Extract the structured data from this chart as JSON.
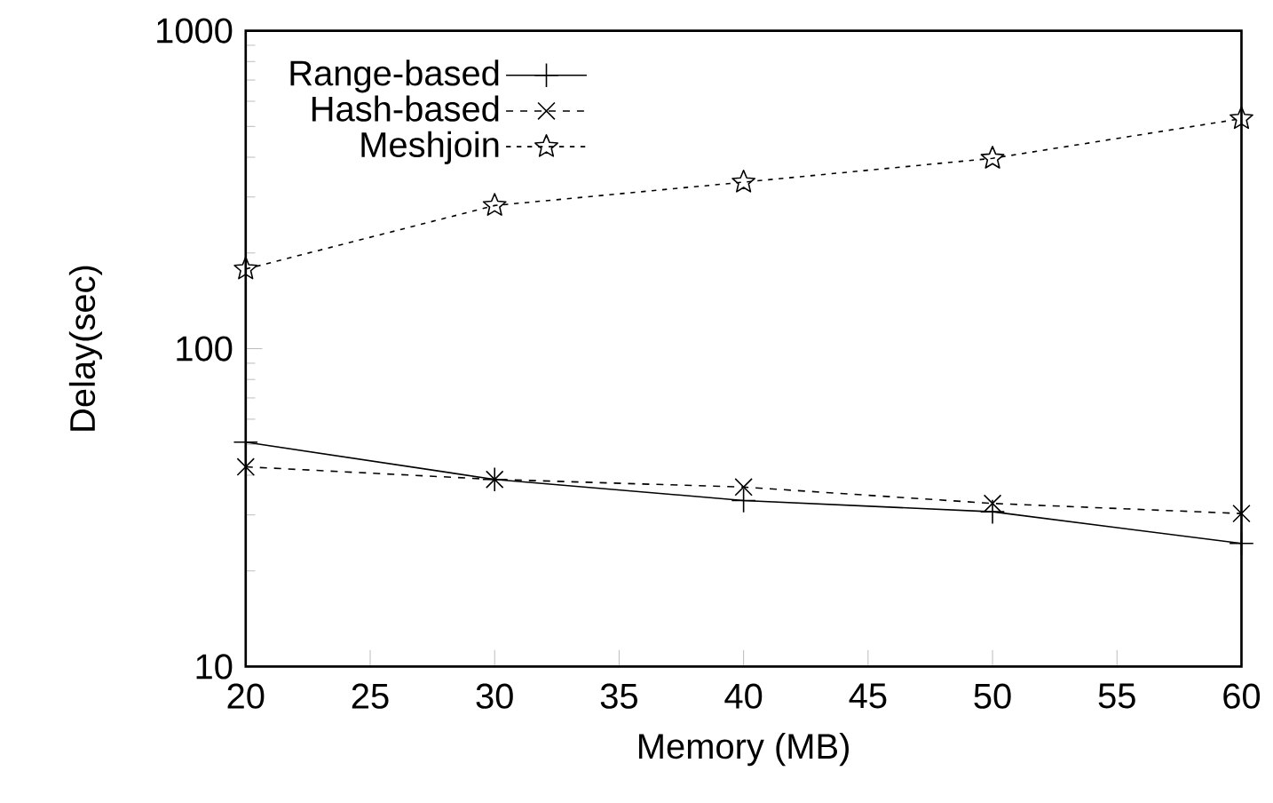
{
  "chart_data": {
    "type": "line",
    "xlabel": "Memory (MB)",
    "ylabel": "Delay(sec)",
    "log": "y",
    "x": [
      20,
      30,
      40,
      50,
      60
    ],
    "xlim": [
      20,
      60
    ],
    "xticks": [
      20,
      25,
      30,
      35,
      40,
      45,
      50,
      55,
      60
    ],
    "ylim": [
      10,
      1000
    ],
    "yticks": [
      10,
      100,
      1000
    ],
    "grid": false,
    "legend": "top left",
    "series": [
      {
        "name": "Range-based",
        "color": "#000000",
        "marker": "plus",
        "line_style": "solid",
        "values": [
          50.8,
          38.8,
          33.3,
          30.7,
          24.4
        ]
      },
      {
        "name": "Hash-based",
        "color": "#000000",
        "marker": "cross",
        "line_style": "dashed",
        "values": [
          42.5,
          38.8,
          36.7,
          32.6,
          30.3
        ]
      },
      {
        "name": "Meshjoin",
        "color": "#000000",
        "marker": "star",
        "line_style": "dotted",
        "values": [
          178,
          282,
          334,
          397,
          529
        ]
      }
    ]
  }
}
